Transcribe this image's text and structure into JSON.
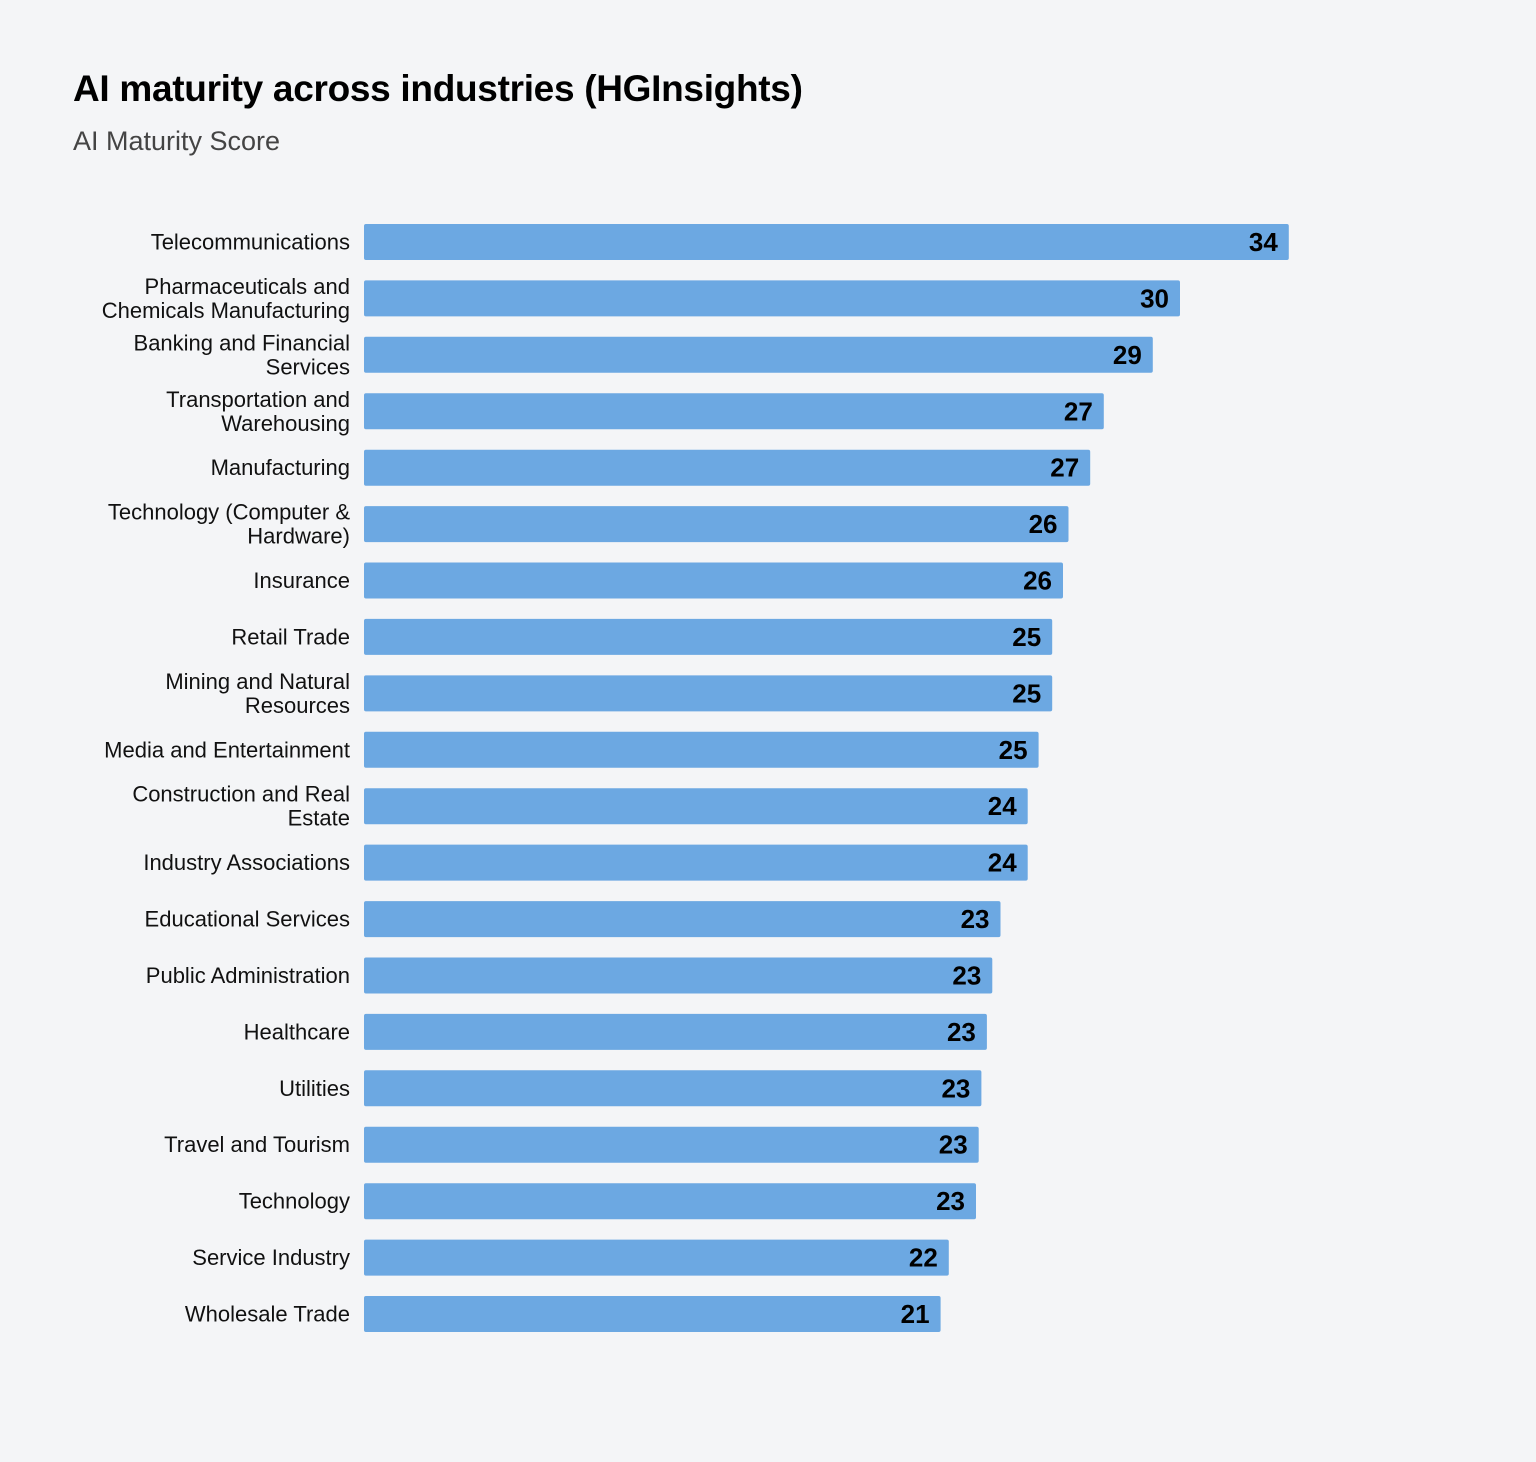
{
  "chart_data": {
    "type": "bar",
    "orientation": "horizontal",
    "title": "AI maturity across industries (HGInsights)",
    "subtitle": "AI Maturity Score",
    "xlabel": "",
    "ylabel": "",
    "xlim": [
      0,
      40
    ],
    "grid": false,
    "legend": "none",
    "bar_color": "#6ca8e2",
    "categories": [
      [
        "Telecommunications"
      ],
      [
        "Pharmaceuticals and",
        "Chemicals Manufacturing"
      ],
      [
        "Banking and Financial",
        "Services"
      ],
      [
        "Transportation and",
        "Warehousing"
      ],
      [
        "Manufacturing"
      ],
      [
        "Technology (Computer &",
        "Hardware)"
      ],
      [
        "Insurance"
      ],
      [
        "Retail Trade"
      ],
      [
        "Mining and Natural",
        "Resources"
      ],
      [
        "Media and Entertainment"
      ],
      [
        "Construction and Real",
        "Estate"
      ],
      [
        "Industry Associations"
      ],
      [
        "Educational Services"
      ],
      [
        "Public Administration"
      ],
      [
        "Healthcare"
      ],
      [
        "Utilities"
      ],
      [
        "Travel and Tourism"
      ],
      [
        "Technology"
      ],
      [
        "Service Industry"
      ],
      [
        "Wholesale Trade"
      ]
    ],
    "values": [
      34.0,
      30.0,
      29.0,
      27.2,
      26.7,
      25.9,
      25.7,
      25.3,
      25.3,
      24.8,
      24.4,
      24.4,
      23.4,
      23.1,
      22.9,
      22.7,
      22.6,
      22.5,
      21.5,
      21.2
    ],
    "data_labels": [
      "34",
      "30",
      "29",
      "27",
      "27",
      "26",
      "26",
      "25",
      "25",
      "25",
      "24",
      "24",
      "23",
      "23",
      "23",
      "23",
      "23",
      "23",
      "22",
      "21"
    ]
  }
}
